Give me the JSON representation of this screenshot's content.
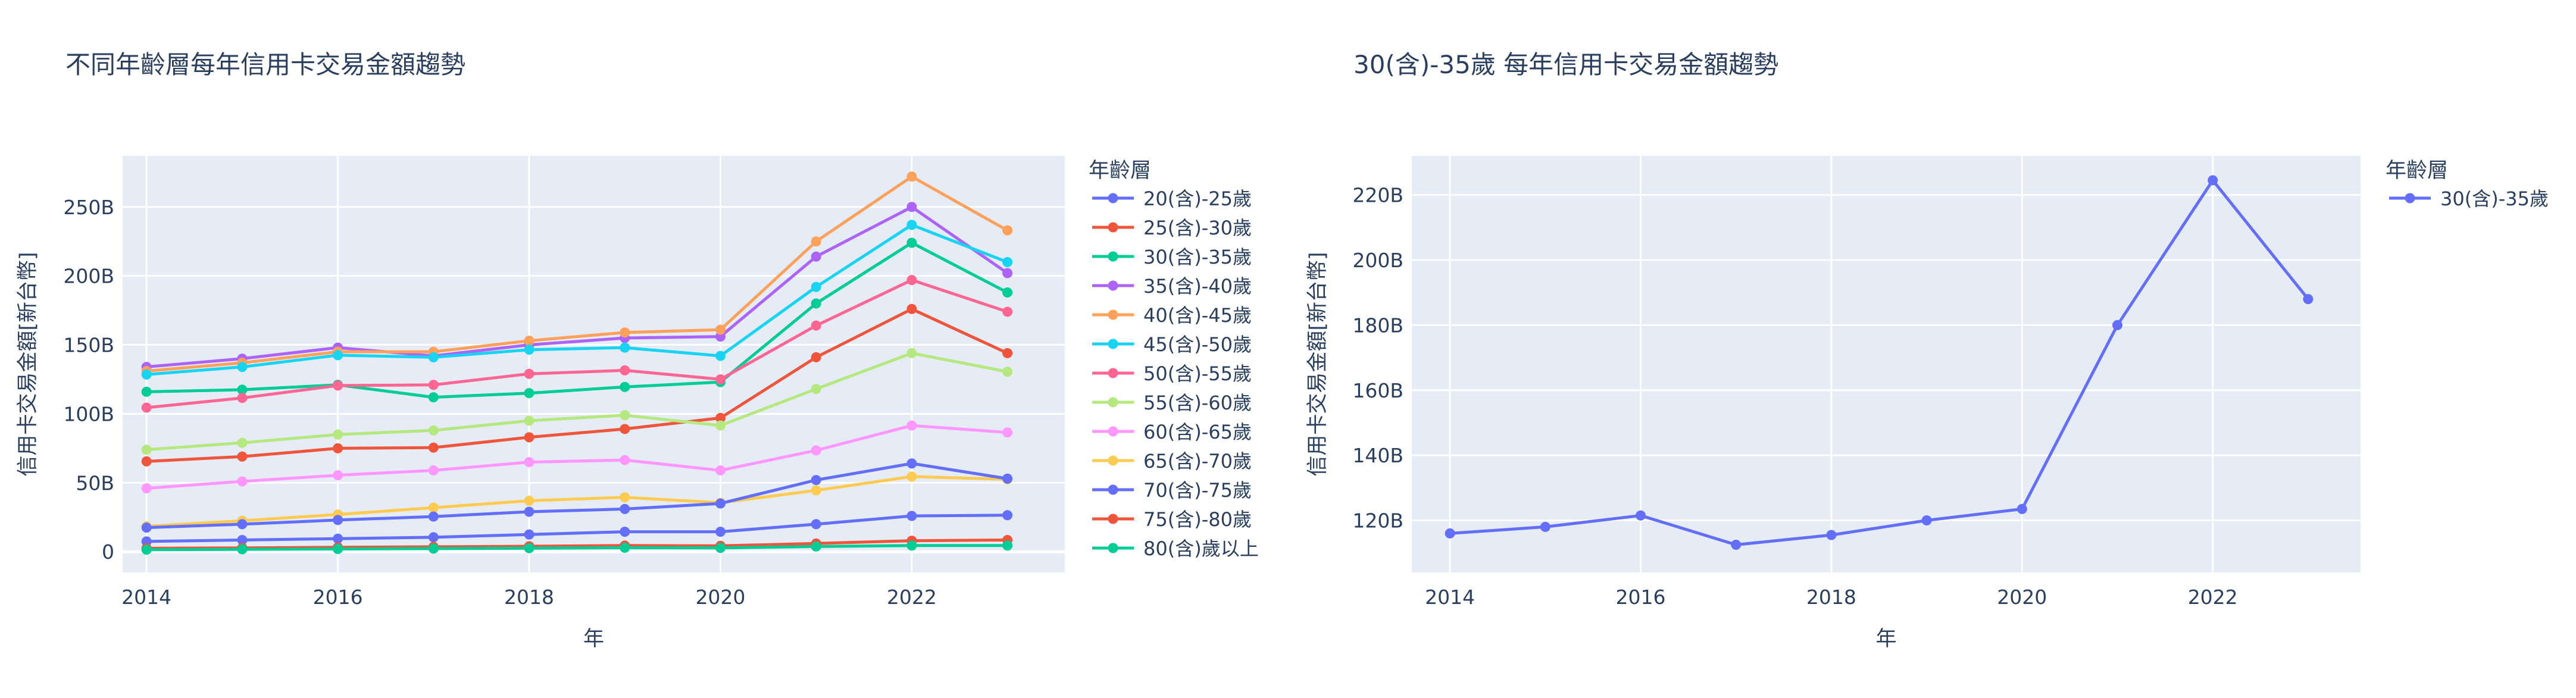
{
  "chart_data": [
    {
      "type": "line",
      "title": "不同年齡層每年信用卡交易金額趨勢",
      "xlabel": "年",
      "ylabel": "信用卡交易金額[新台幣]",
      "x": [
        2014,
        2015,
        2016,
        2017,
        2018,
        2019,
        2020,
        2021,
        2022,
        2023
      ],
      "xticks": [
        2014,
        2016,
        2018,
        2020,
        2022
      ],
      "xtick_labels": [
        "2014",
        "2016",
        "2018",
        "2020",
        "2022"
      ],
      "xlim": [
        2013.75,
        2023.6
      ],
      "yticks": [
        0,
        50,
        100,
        150,
        200,
        250
      ],
      "ytick_labels": [
        "0",
        "50B",
        "100B",
        "150B",
        "200B",
        "250B"
      ],
      "ylim": [
        -15,
        287
      ],
      "grid": true,
      "legend_title": "年齡層",
      "legend_position": "right",
      "series": [
        {
          "name": "20(含)-25歲",
          "color": "#636efa",
          "values": [
            7.5,
            8.5,
            9.5,
            10.5,
            12.5,
            14.5,
            14.5,
            20,
            26,
            26.5
          ]
        },
        {
          "name": "25(含)-30歲",
          "color": "#EF553B",
          "values": [
            65.5,
            69,
            75,
            75.5,
            83,
            89,
            97,
            141,
            176,
            144
          ]
        },
        {
          "name": "30(含)-35歲",
          "color": "#00cc96",
          "values": [
            116,
            117.5,
            121,
            112,
            115,
            119.5,
            123,
            180,
            224,
            188
          ]
        },
        {
          "name": "35(含)-40歲",
          "color": "#ab63fa",
          "values": [
            134,
            140,
            148,
            142,
            150,
            155,
            156,
            214,
            250,
            202
          ]
        },
        {
          "name": "40(含)-45歲",
          "color": "#FFA15A",
          "values": [
            131,
            137,
            145,
            145,
            153,
            159,
            161,
            225,
            272,
            233
          ]
        },
        {
          "name": "45(含)-50歲",
          "color": "#19d3f3",
          "values": [
            128.5,
            134,
            142.5,
            141,
            146.5,
            148,
            142,
            192,
            237,
            210
          ]
        },
        {
          "name": "50(含)-55歲",
          "color": "#FF6692",
          "values": [
            104.5,
            111.5,
            120.5,
            121,
            129,
            131.5,
            125,
            164,
            197,
            174
          ]
        },
        {
          "name": "55(含)-60歲",
          "color": "#B6E880",
          "values": [
            74,
            79,
            85,
            88,
            95,
            99,
            91.5,
            118,
            144,
            130.5
          ]
        },
        {
          "name": "60(含)-65歲",
          "color": "#FF97FF",
          "values": [
            46,
            51,
            55.5,
            59,
            65,
            66.5,
            59,
            73.5,
            91.5,
            86.5
          ]
        },
        {
          "name": "65(含)-70歲",
          "color": "#FECB52",
          "values": [
            18.5,
            22.5,
            27,
            32,
            37,
            39.5,
            35.5,
            44.5,
            54.5,
            52.5
          ]
        },
        {
          "name": "70(含)-75歲",
          "color": "#636efa",
          "values": [
            17.5,
            20,
            23,
            25.5,
            29,
            31,
            35,
            52,
            64,
            53
          ]
        },
        {
          "name": "75(含)-80歲",
          "color": "#EF553B",
          "values": [
            2.5,
            2.8,
            3.2,
            3.6,
            4,
            4.5,
            4.3,
            6,
            8,
            8.5
          ]
        },
        {
          "name": "80(含)歲以上",
          "color": "#00cc96",
          "values": [
            1.5,
            1.8,
            2,
            2.3,
            2.6,
            2.9,
            2.8,
            3.8,
            4.5,
            4.5
          ]
        }
      ]
    },
    {
      "type": "line",
      "title": "30(含)-35歲 每年信用卡交易金額趨勢",
      "xlabel": "年",
      "ylabel": "信用卡交易金額[新台幣]",
      "x": [
        2014,
        2015,
        2016,
        2017,
        2018,
        2019,
        2020,
        2021,
        2022,
        2023
      ],
      "xticks": [
        2014,
        2016,
        2018,
        2020,
        2022
      ],
      "xtick_labels": [
        "2014",
        "2016",
        "2018",
        "2020",
        "2022"
      ],
      "xlim": [
        2013.6,
        2023.55
      ],
      "yticks": [
        120,
        140,
        160,
        180,
        200,
        220
      ],
      "ytick_labels": [
        "120B",
        "140B",
        "160B",
        "180B",
        "200B",
        "220B"
      ],
      "ylim": [
        104,
        232
      ],
      "grid": true,
      "legend_title": "年齡層",
      "legend_position": "right",
      "series": [
        {
          "name": "30(含)-35歲",
          "color": "#636efa",
          "values": [
            116,
            118,
            121.5,
            112.5,
            115.5,
            120,
            123.5,
            180,
            224.5,
            188
          ]
        }
      ]
    }
  ]
}
